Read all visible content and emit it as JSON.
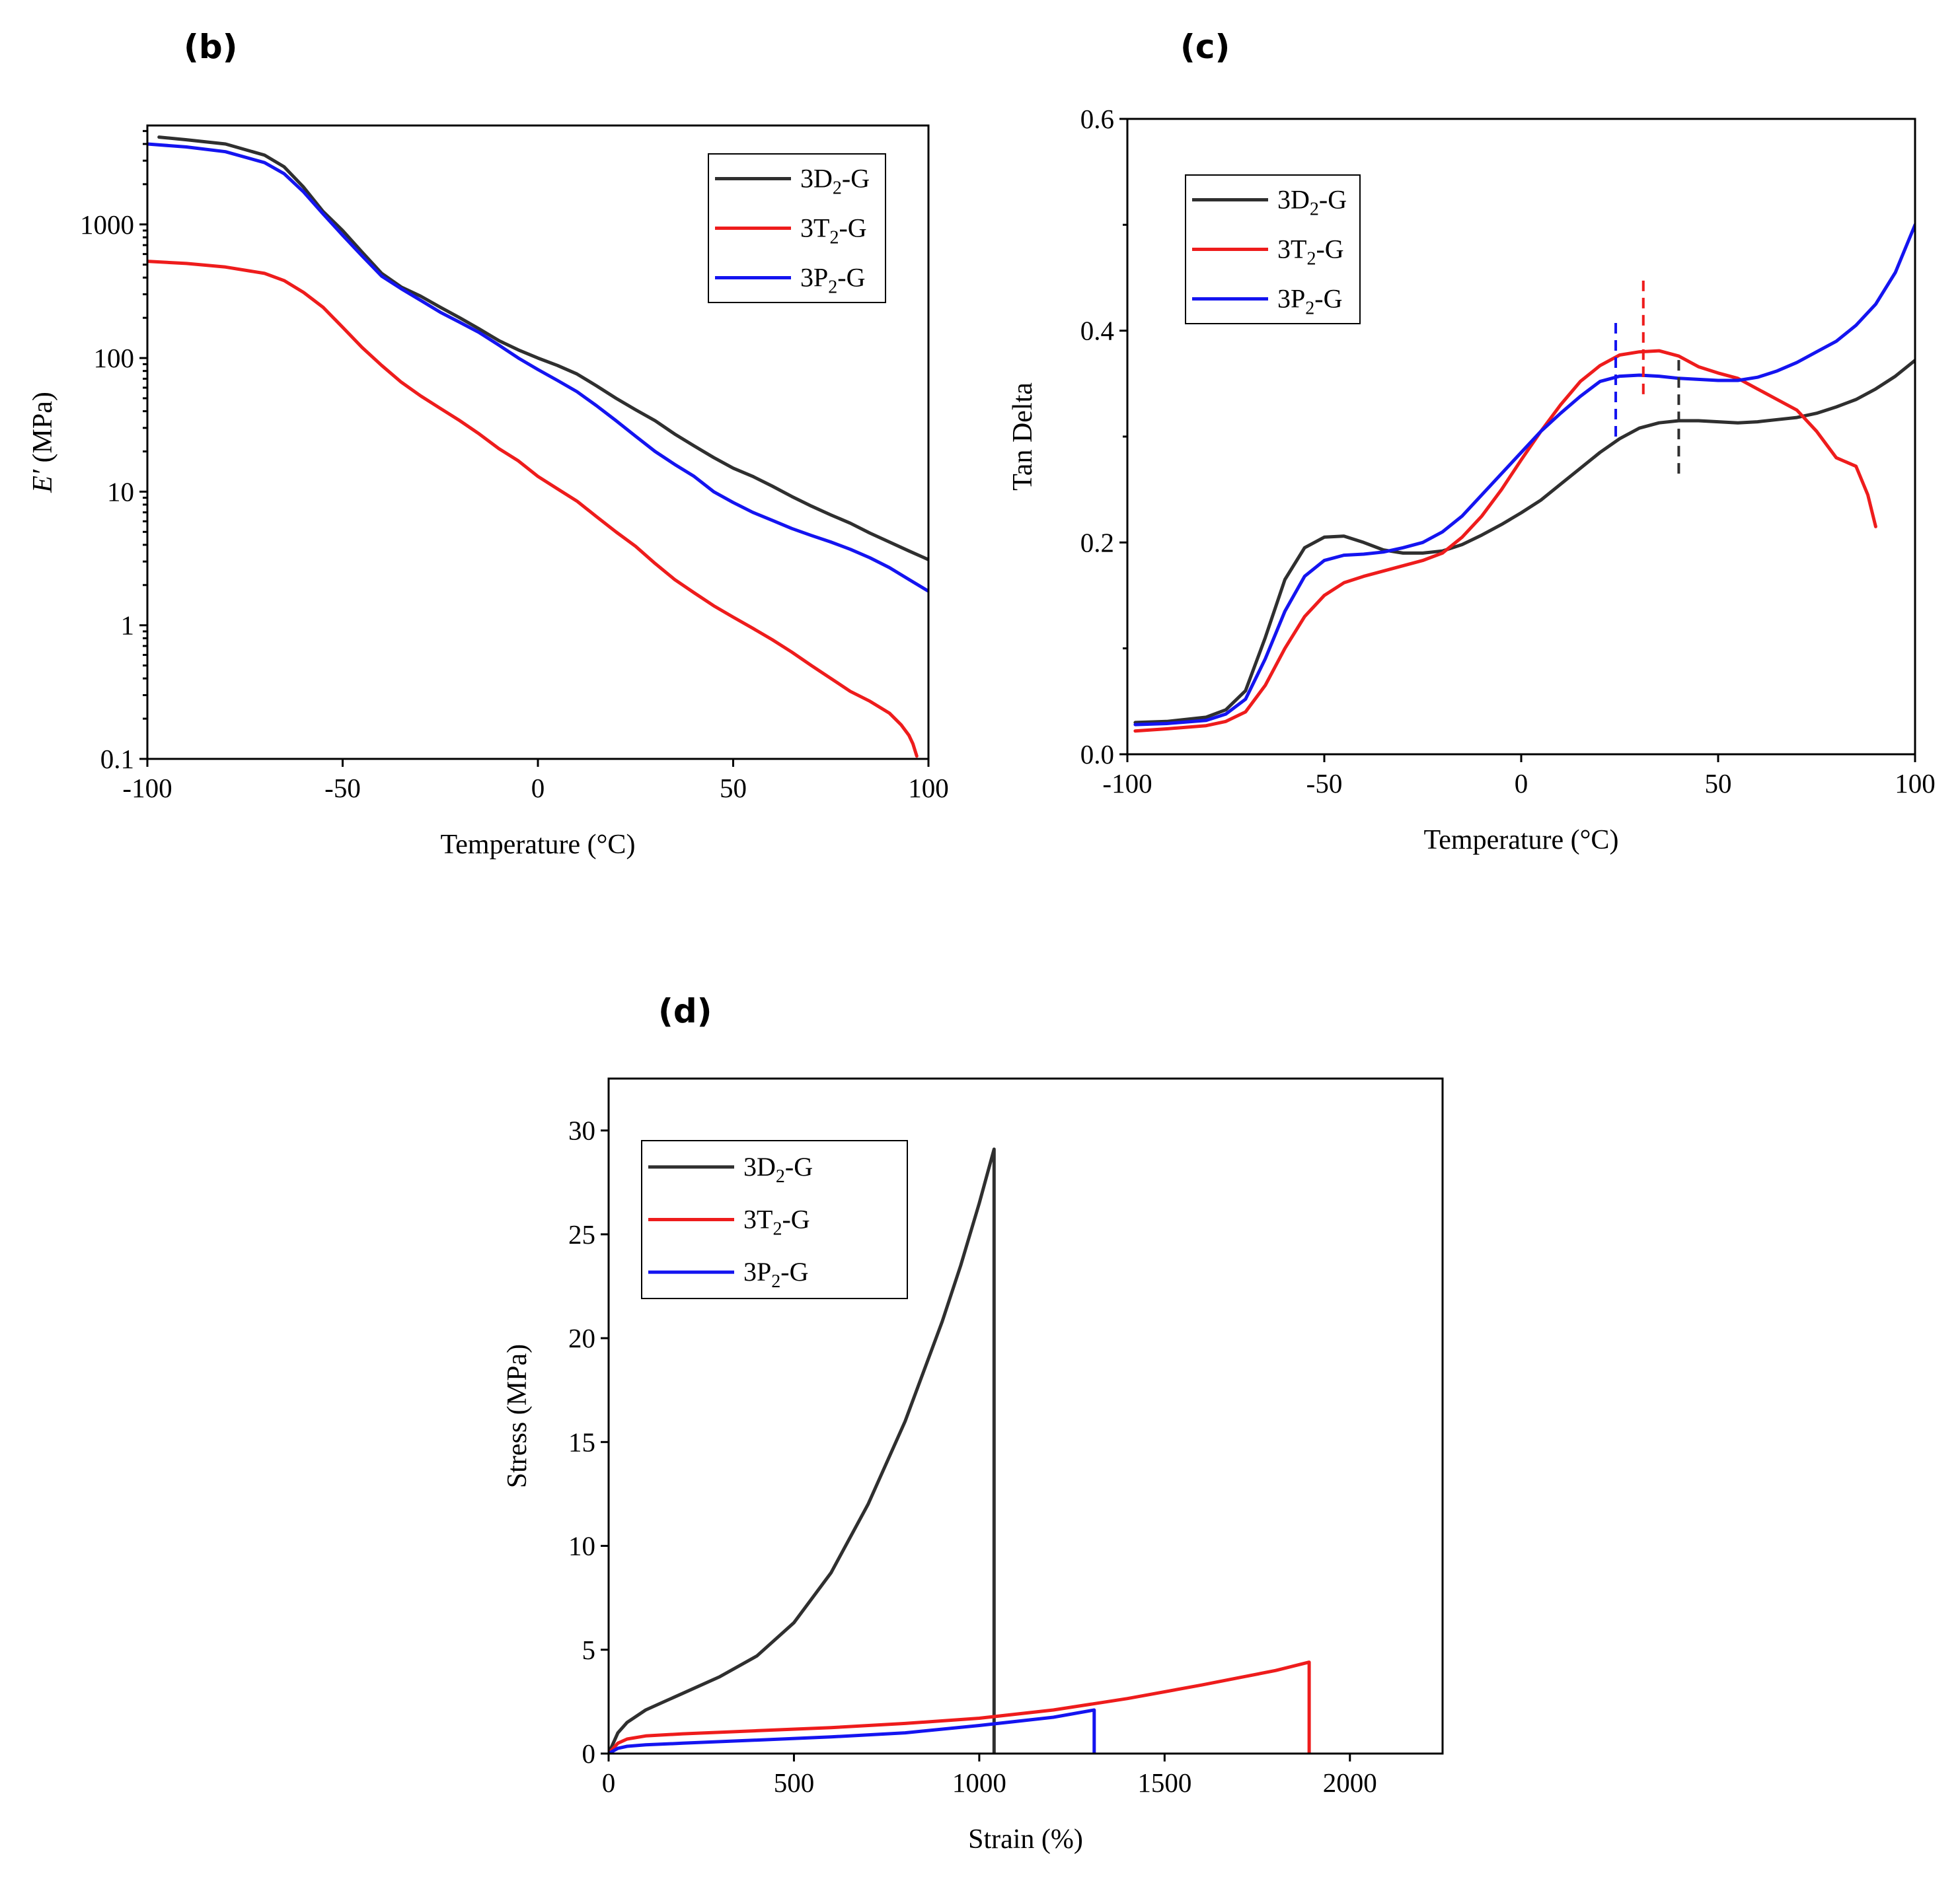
{
  "colors": {
    "D": "#2f2f2f",
    "T": "#ee1c1c",
    "P": "#1414f0"
  },
  "chart_data": [
    {
      "id": "b",
      "panel_label": "(b)",
      "type": "line",
      "xlabel": "Temperature (°C)",
      "ylabel": "E′ (MPa)",
      "ylabel_parts": {
        "sym": "E′",
        "unit": " (MPa)"
      },
      "yscale": "log",
      "xlim": [
        -100,
        100
      ],
      "ylim": [
        0.1,
        5500
      ],
      "xticks": [
        -100,
        -50,
        0,
        50,
        100
      ],
      "xtick_labels": [
        "-100",
        "-50",
        "0",
        "50",
        "100"
      ],
      "yticks": [
        0.1,
        1,
        10,
        100,
        1000
      ],
      "ytick_labels": [
        "0.1",
        "1",
        "10",
        "100",
        "1000"
      ],
      "legend": [
        "3D2-G",
        "3T2-G",
        "3P2-G"
      ],
      "legend_position": "top-right",
      "series": [
        {
          "name": "3D2-G",
          "color_key": "D",
          "x": [
            -97,
            -90,
            -80,
            -70,
            -65,
            -60,
            -55,
            -50,
            -45,
            -40,
            -35,
            -30,
            -25,
            -20,
            -15,
            -10,
            -5,
            0,
            5,
            10,
            15,
            20,
            25,
            30,
            35,
            40,
            45,
            50,
            55,
            60,
            65,
            70,
            75,
            80,
            85,
            90,
            95,
            100
          ],
          "y": [
            4500,
            4300,
            4000,
            3300,
            2700,
            1900,
            1250,
            900,
            620,
            430,
            340,
            290,
            240,
            200,
            165,
            135,
            115,
            100,
            88,
            76,
            62,
            50,
            41,
            34,
            27,
            22,
            18,
            15,
            13,
            11,
            9.2,
            7.8,
            6.7,
            5.8,
            4.9,
            4.2,
            3.6,
            3.1
          ]
        },
        {
          "name": "3T2-G",
          "color_key": "T",
          "x": [
            -100,
            -90,
            -80,
            -70,
            -65,
            -60,
            -55,
            -50,
            -45,
            -40,
            -35,
            -30,
            -25,
            -20,
            -15,
            -10,
            -5,
            0,
            5,
            10,
            15,
            20,
            25,
            30,
            35,
            40,
            45,
            50,
            55,
            60,
            65,
            70,
            75,
            80,
            85,
            90,
            93,
            95,
            96,
            97
          ],
          "y": [
            530,
            510,
            480,
            430,
            380,
            310,
            240,
            170,
            120,
            88,
            66,
            52,
            42,
            34,
            27,
            21,
            17,
            13,
            10.5,
            8.5,
            6.5,
            5,
            3.9,
            2.9,
            2.2,
            1.75,
            1.4,
            1.15,
            0.95,
            0.78,
            0.63,
            0.5,
            0.4,
            0.32,
            0.27,
            0.22,
            0.18,
            0.15,
            0.13,
            0.105
          ]
        },
        {
          "name": "3P2-G",
          "color_key": "P",
          "x": [
            -100,
            -90,
            -80,
            -70,
            -65,
            -60,
            -55,
            -50,
            -45,
            -40,
            -35,
            -30,
            -25,
            -20,
            -15,
            -10,
            -5,
            0,
            5,
            10,
            15,
            20,
            25,
            30,
            35,
            40,
            45,
            50,
            55,
            60,
            65,
            70,
            75,
            80,
            85,
            90,
            95,
            100
          ],
          "y": [
            4000,
            3800,
            3500,
            2900,
            2400,
            1750,
            1200,
            830,
            580,
            410,
            330,
            270,
            220,
            185,
            155,
            125,
            100,
            82,
            68,
            56,
            44,
            34,
            26,
            20,
            16,
            13,
            10,
            8.3,
            7,
            6.1,
            5.3,
            4.7,
            4.2,
            3.7,
            3.2,
            2.7,
            2.2,
            1.8
          ]
        }
      ]
    },
    {
      "id": "c",
      "panel_label": "(c)",
      "type": "line",
      "xlabel": "Temperature (°C)",
      "ylabel": "Tan Delta",
      "xlim": [
        -100,
        100
      ],
      "ylim": [
        0.0,
        0.6
      ],
      "xticks": [
        -100,
        -50,
        0,
        50,
        100
      ],
      "xtick_labels": [
        "-100",
        "-50",
        "0",
        "50",
        "100"
      ],
      "yticks": [
        0.0,
        0.2,
        0.4,
        0.6
      ],
      "ytick_labels": [
        "0.0",
        "0.2",
        "0.4",
        "0.6"
      ],
      "y_minor_ticks": [
        0.1,
        0.3,
        0.5
      ],
      "legend": [
        "3D2-G",
        "3T2-G",
        "3P2-G"
      ],
      "legend_position": "top-left",
      "series": [
        {
          "name": "3D2-G",
          "color_key": "D",
          "x": [
            -98,
            -90,
            -80,
            -75,
            -70,
            -65,
            -60,
            -55,
            -50,
            -45,
            -40,
            -35,
            -30,
            -25,
            -20,
            -15,
            -10,
            -5,
            0,
            5,
            10,
            15,
            20,
            25,
            30,
            35,
            40,
            45,
            50,
            55,
            60,
            65,
            70,
            75,
            80,
            85,
            90,
            95,
            100
          ],
          "y": [
            0.03,
            0.031,
            0.035,
            0.042,
            0.06,
            0.11,
            0.165,
            0.195,
            0.205,
            0.206,
            0.2,
            0.193,
            0.19,
            0.19,
            0.192,
            0.198,
            0.207,
            0.217,
            0.228,
            0.24,
            0.255,
            0.27,
            0.285,
            0.298,
            0.308,
            0.313,
            0.315,
            0.315,
            0.314,
            0.313,
            0.314,
            0.316,
            0.318,
            0.322,
            0.328,
            0.335,
            0.345,
            0.357,
            0.372
          ]
        },
        {
          "name": "3T2-G",
          "color_key": "T",
          "x": [
            -98,
            -90,
            -80,
            -75,
            -70,
            -65,
            -60,
            -55,
            -50,
            -45,
            -40,
            -35,
            -30,
            -25,
            -20,
            -15,
            -10,
            -5,
            0,
            5,
            10,
            15,
            20,
            25,
            30,
            35,
            40,
            45,
            50,
            55,
            60,
            65,
            70,
            75,
            80,
            85,
            88,
            90
          ],
          "y": [
            0.022,
            0.024,
            0.027,
            0.031,
            0.04,
            0.065,
            0.1,
            0.13,
            0.15,
            0.162,
            0.168,
            0.173,
            0.178,
            0.183,
            0.19,
            0.205,
            0.225,
            0.25,
            0.278,
            0.305,
            0.33,
            0.352,
            0.367,
            0.377,
            0.38,
            0.381,
            0.376,
            0.366,
            0.36,
            0.355,
            0.345,
            0.335,
            0.325,
            0.305,
            0.28,
            0.272,
            0.245,
            0.215
          ]
        },
        {
          "name": "3P2-G",
          "color_key": "P",
          "x": [
            -98,
            -90,
            -80,
            -75,
            -70,
            -65,
            -60,
            -55,
            -50,
            -45,
            -40,
            -35,
            -30,
            -25,
            -20,
            -15,
            -10,
            -5,
            0,
            5,
            10,
            15,
            20,
            25,
            30,
            35,
            40,
            45,
            50,
            55,
            60,
            65,
            70,
            75,
            80,
            85,
            90,
            95,
            100
          ],
          "y": [
            0.028,
            0.029,
            0.032,
            0.038,
            0.052,
            0.09,
            0.135,
            0.168,
            0.183,
            0.188,
            0.189,
            0.191,
            0.195,
            0.2,
            0.21,
            0.225,
            0.245,
            0.265,
            0.285,
            0.305,
            0.322,
            0.338,
            0.352,
            0.357,
            0.358,
            0.357,
            0.355,
            0.354,
            0.353,
            0.353,
            0.356,
            0.362,
            0.37,
            0.38,
            0.39,
            0.405,
            0.425,
            0.455,
            0.5
          ]
        }
      ],
      "markers": [
        {
          "x": 24,
          "y0": 0.3,
          "y1": 0.41,
          "color_key": "P"
        },
        {
          "x": 31,
          "y0": 0.34,
          "y1": 0.45,
          "color_key": "T"
        },
        {
          "x": 40,
          "y0": 0.265,
          "y1": 0.375,
          "color_key": "D"
        }
      ]
    },
    {
      "id": "d",
      "panel_label": "(d)",
      "type": "line",
      "xlabel": "Strain (%)",
      "ylabel": "Stress (MPa)",
      "xlim": [
        0,
        2250
      ],
      "ylim": [
        0,
        32.5
      ],
      "xticks": [
        0,
        500,
        1000,
        1500,
        2000
      ],
      "xtick_labels": [
        "0",
        "500",
        "1000",
        "1500",
        "2000"
      ],
      "yticks": [
        0,
        5,
        10,
        15,
        20,
        25,
        30
      ],
      "ytick_labels": [
        "0",
        "5",
        "10",
        "15",
        "20",
        "25",
        "30"
      ],
      "legend": [
        "3D2-G",
        "3T2-G",
        "3P2-G"
      ],
      "legend_position": "top-left",
      "series": [
        {
          "name": "3D2-G",
          "color_key": "D",
          "x": [
            0,
            25,
            50,
            100,
            150,
            200,
            300,
            400,
            500,
            600,
            700,
            800,
            900,
            950,
            1000,
            1040,
            1040
          ],
          "y": [
            0,
            1.0,
            1.5,
            2.1,
            2.5,
            2.9,
            3.7,
            4.7,
            6.3,
            8.7,
            12.0,
            16.0,
            20.8,
            23.5,
            26.5,
            29.1,
            0
          ]
        },
        {
          "name": "3T2-G",
          "color_key": "T",
          "x": [
            0,
            25,
            50,
            100,
            200,
            400,
            600,
            800,
            1000,
            1200,
            1400,
            1600,
            1800,
            1890,
            1890
          ],
          "y": [
            0,
            0.5,
            0.7,
            0.85,
            0.95,
            1.1,
            1.25,
            1.45,
            1.7,
            2.1,
            2.65,
            3.3,
            4.0,
            4.4,
            0
          ]
        },
        {
          "name": "3P2-G",
          "color_key": "P",
          "x": [
            0,
            25,
            50,
            100,
            200,
            400,
            600,
            800,
            1000,
            1200,
            1310,
            1310
          ],
          "y": [
            0,
            0.25,
            0.35,
            0.42,
            0.5,
            0.65,
            0.8,
            1.0,
            1.35,
            1.75,
            2.1,
            0
          ]
        }
      ]
    }
  ]
}
